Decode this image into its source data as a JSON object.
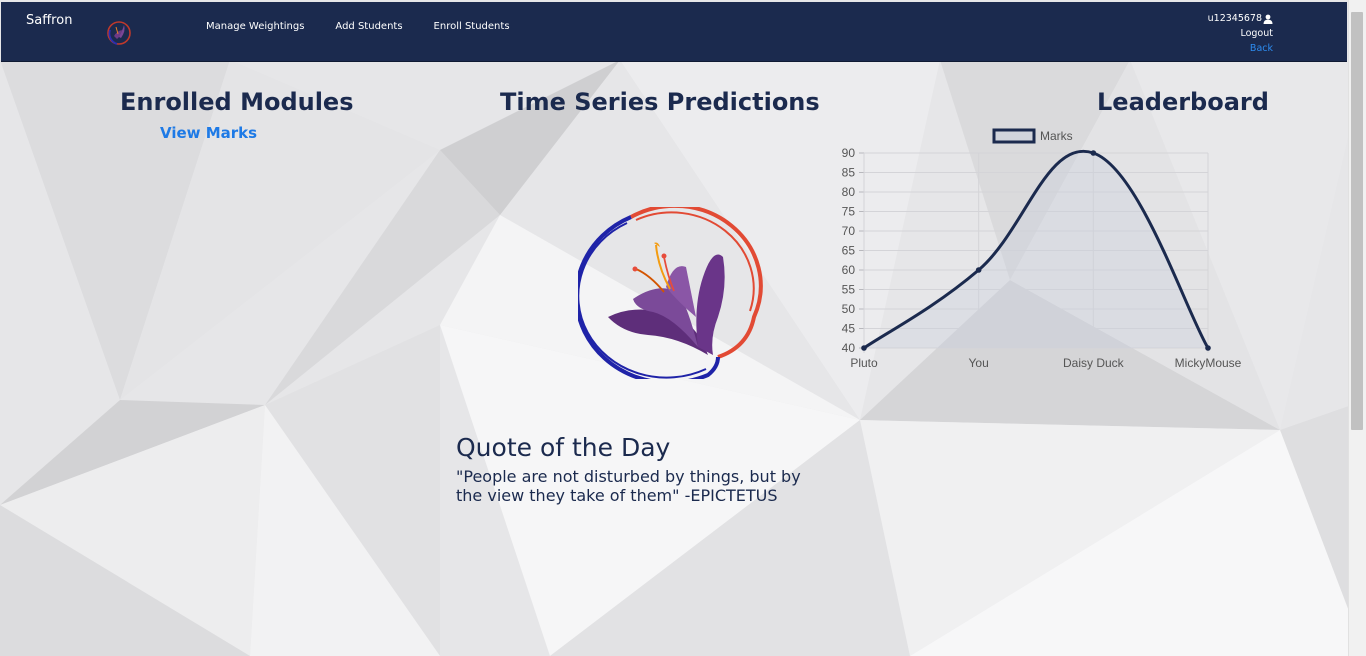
{
  "navbar": {
    "brand": "Saffron",
    "links": [
      "Manage Weightings",
      "Add Students",
      "Enroll Students"
    ],
    "username": "u12345678",
    "logout": "Logout",
    "back": "Back"
  },
  "main": {
    "enrolled_heading": "Enrolled Modules",
    "view_marks": "View Marks",
    "time_series_heading": "Time Series Predictions",
    "leaderboard_heading": "Leaderboard",
    "quote_title": "Quote of the Day",
    "quote_text": "\"People are not disturbed by things, but by the view they take of them\" -EPICTETUS"
  },
  "colors": {
    "navbar": "#1b2a4e",
    "heading": "#1b2a4e",
    "link": "#1e7ae6"
  },
  "icons": [
    "saffron-logo-icon",
    "user-icon"
  ],
  "chart_data": {
    "type": "line",
    "categories": [
      "Pluto",
      "You",
      "Daisy Duck",
      "MickyMouse"
    ],
    "series": [
      {
        "name": "Marks",
        "values": [
          40,
          60,
          90,
          40
        ]
      }
    ],
    "ylim": [
      40,
      90
    ],
    "yticks": [
      40,
      45,
      50,
      55,
      60,
      65,
      70,
      75,
      80,
      85,
      90
    ],
    "grid": true,
    "legend": "top"
  }
}
